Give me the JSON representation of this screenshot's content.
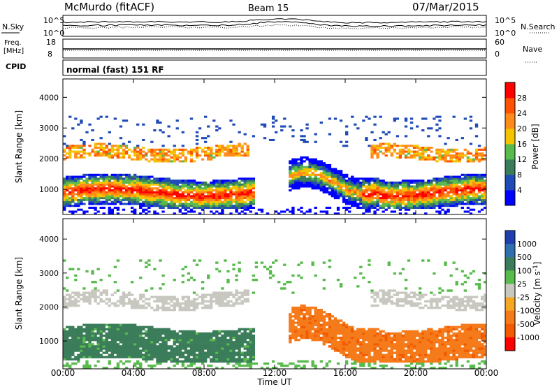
{
  "header": {
    "station": "McMurdo (fitACF)",
    "beam": "Beam 15",
    "date": "07/Mar/2015"
  },
  "top_panel": {
    "left_label": "N.Sky",
    "right_label": "N.Search",
    "left_ticks": [
      "10^5",
      "10^0"
    ],
    "right_ticks": [
      "10^5",
      "10^0"
    ]
  },
  "freq_panel": {
    "left_label_1": "Freq.",
    "left_label_2": "[MHz]",
    "right_label": "Nave",
    "left_ticks": [
      "18",
      "8"
    ],
    "right_ticks": [
      "60",
      "0"
    ]
  },
  "cpid": {
    "label": "CPID",
    "value": "normal (fast) 151 RF"
  },
  "colors": {
    "power": [
      "#0000ff",
      "#1f4bb8",
      "#3b7d5a",
      "#59bb4d",
      "#f5c400",
      "#ff8c1a",
      "#ff5200",
      "#ff0000"
    ],
    "velocity": [
      "#1f3fb0",
      "#2f6fb0",
      "#3b7d5a",
      "#59bb4d",
      "#c8c8c0",
      "#f5a623",
      "#f57a1a",
      "#f25a00",
      "#ff0000"
    ]
  },
  "chart_data": [
    {
      "type": "heatmap",
      "title": "Power",
      "ylabel": "Slant Range [km]",
      "xlabel": "Time UT",
      "x_ticks": [
        "00:00",
        "04:00",
        "08:00",
        "12:00",
        "16:00",
        "20:00",
        "00:00"
      ],
      "y_ticks": [
        1000,
        2000,
        3000,
        4000
      ],
      "ylim": [
        180,
        4600
      ],
      "xlim_hours": [
        0,
        24
      ],
      "colorbar_label": "Power [dB]",
      "colorbar_ticks": [
        4,
        8,
        12,
        16,
        20,
        24,
        28
      ],
      "scale_range": [
        0,
        32
      ]
    },
    {
      "type": "heatmap",
      "title": "Velocity",
      "ylabel": "Slant Range [km]",
      "xlabel": "Time UT",
      "x_ticks": [
        "00:00",
        "04:00",
        "08:00",
        "12:00",
        "16:00",
        "20:00",
        "00:00"
      ],
      "y_ticks": [
        1000,
        2000,
        3000,
        4000
      ],
      "ylim": [
        180,
        4600
      ],
      "xlim_hours": [
        0,
        24
      ],
      "colorbar_label": "Velocity [m s",
      "colorbar_label_sup": "-1",
      "colorbar_label_end": "]",
      "colorbar_ticks": [
        "1000",
        "500",
        "100",
        "25",
        "-25",
        "-100",
        "-500",
        "-1000"
      ]
    }
  ]
}
